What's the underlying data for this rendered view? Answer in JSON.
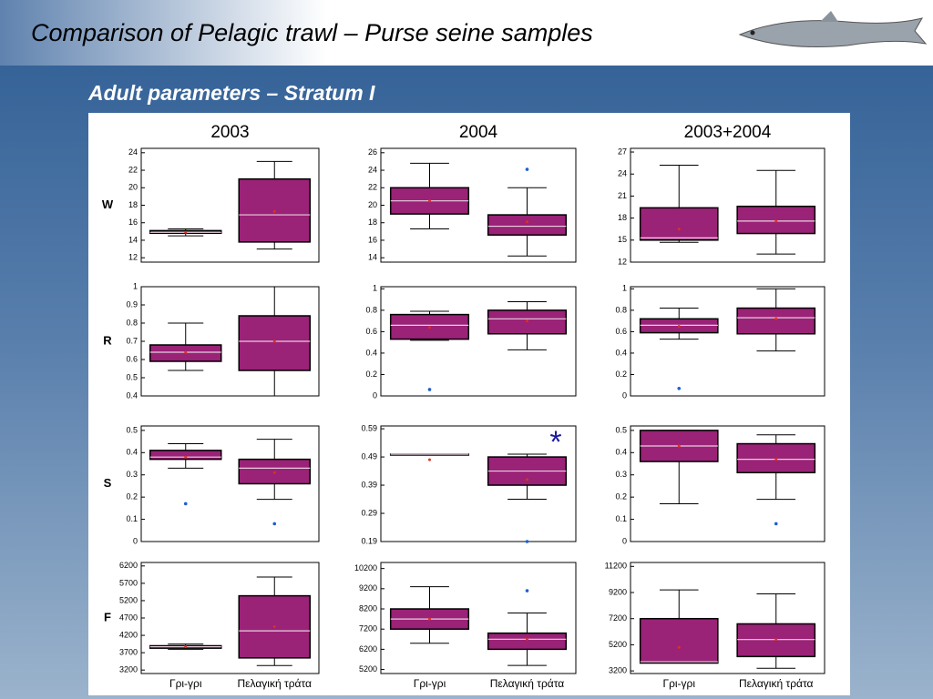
{
  "header": {
    "title": "Comparison of Pelagic trawl – Purse seine samples",
    "subtitle": "Adult parameters – Stratum I"
  },
  "chart_data": [
    {
      "type": "box",
      "title": "2003",
      "ylabel": "W",
      "ylim": [
        11.5,
        24.5
      ],
      "yticks": [
        12,
        14,
        16,
        18,
        20,
        22,
        24
      ],
      "boxes": [
        {
          "min": 14.5,
          "q1": 14.8,
          "median": 14.9,
          "q3": 15.1,
          "max": 15.3,
          "mean": 14.9,
          "outliers": []
        },
        {
          "min": 13,
          "q1": 13.8,
          "median": 16.9,
          "q3": 21,
          "max": 23,
          "mean": 17.3,
          "outliers": []
        }
      ]
    },
    {
      "type": "box",
      "title": "2004",
      "ylim": [
        13.5,
        26.5
      ],
      "yticks": [
        14,
        16,
        18,
        20,
        22,
        24,
        26
      ],
      "boxes": [
        {
          "min": 17.3,
          "q1": 19,
          "median": 20.5,
          "q3": 22,
          "max": 24.8,
          "mean": 20.5,
          "outliers": []
        },
        {
          "min": 14.2,
          "q1": 16.6,
          "median": 17.6,
          "q3": 18.9,
          "max": 22,
          "mean": 18.1,
          "outliers": [
            24.1
          ]
        }
      ]
    },
    {
      "type": "box",
      "title": "2003+2004",
      "ylim": [
        12,
        27.5
      ],
      "yticks": [
        12,
        15,
        18,
        21,
        24,
        27
      ],
      "boxes": [
        {
          "min": 14.7,
          "q1": 15,
          "median": 15.3,
          "q3": 19.4,
          "max": 25.2,
          "mean": 16.5,
          "outliers": []
        },
        {
          "min": 13.1,
          "q1": 15.9,
          "median": 17.6,
          "q3": 19.6,
          "max": 24.5,
          "mean": 17.6,
          "outliers": []
        }
      ]
    },
    {
      "type": "box",
      "ylabel": "R",
      "ylim": [
        0.4,
        1.0
      ],
      "yticks": [
        0.4,
        0.5,
        0.6,
        0.7,
        0.8,
        0.9,
        1
      ],
      "boxes": [
        {
          "min": 0.54,
          "q1": 0.59,
          "median": 0.64,
          "q3": 0.68,
          "max": 0.8,
          "mean": 0.64,
          "outliers": []
        },
        {
          "min": 0.4,
          "q1": 0.54,
          "median": 0.7,
          "q3": 0.84,
          "max": 1.0,
          "mean": 0.7,
          "outliers": []
        }
      ]
    },
    {
      "type": "box",
      "ylim": [
        0,
        1.02
      ],
      "yticks": [
        0,
        0.2,
        0.4,
        0.6,
        0.8,
        1
      ],
      "boxes": [
        {
          "min": 0.52,
          "q1": 0.53,
          "median": 0.66,
          "q3": 0.76,
          "max": 0.79,
          "mean": 0.64,
          "outliers": [
            0.06
          ]
        },
        {
          "min": 0.43,
          "q1": 0.58,
          "median": 0.72,
          "q3": 0.8,
          "max": 0.88,
          "mean": 0.7,
          "outliers": []
        }
      ]
    },
    {
      "type": "box",
      "ylim": [
        0,
        1.02
      ],
      "yticks": [
        0,
        0.2,
        0.4,
        0.6,
        0.8,
        1
      ],
      "boxes": [
        {
          "min": 0.53,
          "q1": 0.59,
          "median": 0.66,
          "q3": 0.72,
          "max": 0.82,
          "mean": 0.65,
          "outliers": [
            0.07
          ]
        },
        {
          "min": 0.42,
          "q1": 0.58,
          "median": 0.73,
          "q3": 0.82,
          "max": 1.0,
          "mean": 0.72,
          "outliers": []
        }
      ]
    },
    {
      "type": "box",
      "ylabel": "S",
      "ylim": [
        0,
        0.52
      ],
      "yticks": [
        0,
        0.1,
        0.2,
        0.3,
        0.4,
        0.5
      ],
      "boxes": [
        {
          "min": 0.33,
          "q1": 0.37,
          "median": 0.38,
          "q3": 0.41,
          "max": 0.44,
          "mean": 0.38,
          "outliers": [
            0.17
          ]
        },
        {
          "min": 0.19,
          "q1": 0.26,
          "median": 0.33,
          "q3": 0.37,
          "max": 0.46,
          "mean": 0.31,
          "outliers": [
            0.08
          ]
        }
      ]
    },
    {
      "type": "box",
      "annotation": "*",
      "ylim": [
        0.19,
        0.6
      ],
      "yticks": [
        0.19,
        0.29,
        0.39,
        0.49,
        0.59
      ],
      "boxes": [
        {
          "min": 0.5,
          "q1": 0.5,
          "median": 0.5,
          "q3": 0.5,
          "max": 0.5,
          "mean": 0.48,
          "outliers": []
        },
        {
          "min": 0.34,
          "q1": 0.39,
          "median": 0.44,
          "q3": 0.49,
          "max": 0.5,
          "mean": 0.41,
          "outliers": [
            0.19
          ]
        }
      ]
    },
    {
      "type": "box",
      "ylim": [
        0,
        0.52
      ],
      "yticks": [
        0,
        0.1,
        0.2,
        0.3,
        0.4,
        0.5
      ],
      "boxes": [
        {
          "min": 0.17,
          "q1": 0.36,
          "median": 0.43,
          "q3": 0.5,
          "max": 0.5,
          "mean": 0.43,
          "outliers": []
        },
        {
          "min": 0.19,
          "q1": 0.31,
          "median": 0.37,
          "q3": 0.44,
          "max": 0.48,
          "mean": 0.37,
          "outliers": [
            0.08
          ]
        }
      ]
    },
    {
      "type": "box",
      "ylabel": "F",
      "categories": [
        "Γρι-γρι",
        "Πελαγική τράτα"
      ],
      "ylim": [
        3100,
        6300
      ],
      "yticks": [
        3200,
        3700,
        4200,
        4700,
        5200,
        5700,
        6200
      ],
      "boxes": [
        {
          "min": 3800,
          "q1": 3830,
          "median": 3870,
          "q3": 3900,
          "max": 3950,
          "mean": 3870,
          "outliers": []
        },
        {
          "min": 3330,
          "q1": 3550,
          "median": 4330,
          "q3": 5340,
          "max": 5880,
          "mean": 4450,
          "outliers": []
        }
      ]
    },
    {
      "type": "box",
      "categories": [
        "Γρι-γρι",
        "Πελαγική τράτα"
      ],
      "ylim": [
        5000,
        10500
      ],
      "yticks": [
        5200,
        6200,
        7200,
        8200,
        9200,
        10200
      ],
      "boxes": [
        {
          "min": 6500,
          "q1": 7200,
          "median": 7700,
          "q3": 8200,
          "max": 9300,
          "mean": 7700,
          "outliers": []
        },
        {
          "min": 5400,
          "q1": 6200,
          "median": 6700,
          "q3": 7000,
          "max": 8000,
          "mean": 6700,
          "outliers": [
            9100
          ]
        }
      ]
    },
    {
      "type": "box",
      "categories": [
        "Γρι-γρι",
        "Πελαγική τράτα"
      ],
      "ylim": [
        3000,
        11500
      ],
      "yticks": [
        3200,
        5200,
        7200,
        9200,
        11200
      ],
      "boxes": [
        {
          "min": 3800,
          "q1": 3800,
          "median": 3900,
          "q3": 7200,
          "max": 9400,
          "mean": 5000,
          "outliers": []
        },
        {
          "min": 3400,
          "q1": 4300,
          "median": 5600,
          "q3": 6800,
          "max": 9100,
          "mean": 5600,
          "outliers": []
        }
      ]
    }
  ]
}
